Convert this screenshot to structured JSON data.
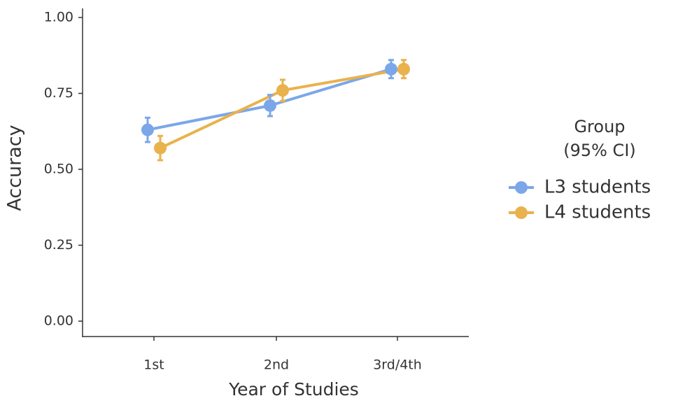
{
  "chart_data": {
    "type": "line",
    "categories": [
      "1st",
      "2nd",
      "3rd/4th"
    ],
    "x_label": "Year of Studies",
    "y_label": "Accuracy",
    "ylim": [
      0,
      1
    ],
    "yticks": [
      {
        "value": 0,
        "label": "0.00"
      },
      {
        "value": 0.25,
        "label": "0.25"
      },
      {
        "value": 0.5,
        "label": "0.50"
      },
      {
        "value": 0.75,
        "label": "0.75"
      },
      {
        "value": 1,
        "label": "1.00"
      }
    ],
    "legend_title": [
      "Group",
      "(95% CI)"
    ],
    "legend_position": "right",
    "series": [
      {
        "name": "L3 students",
        "color": "#7ba7e8",
        "values": [
          0.63,
          0.71,
          0.83
        ],
        "errors": [
          0.04,
          0.035,
          0.03
        ]
      },
      {
        "name": "L4 students",
        "color": "#e9b24c",
        "values": [
          0.57,
          0.76,
          0.83
        ],
        "errors": [
          0.04,
          0.035,
          0.03
        ]
      }
    ]
  }
}
